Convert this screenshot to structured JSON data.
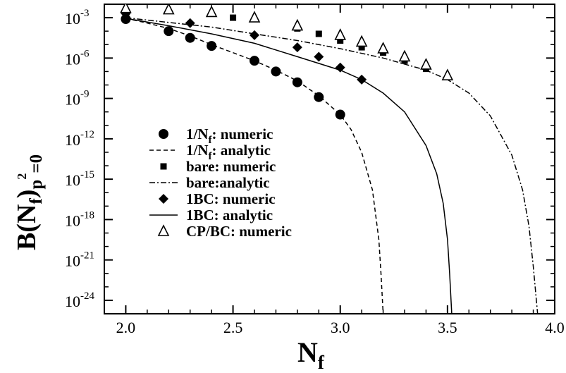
{
  "chart_data": {
    "type": "scatter",
    "xlabel": "N",
    "xlabel_sub": "f",
    "ylabel_parts": [
      "B(N",
      "f",
      ")",
      "p",
      "2",
      "=0"
    ],
    "xlim": [
      1.9,
      4.0
    ],
    "ylim_log10": [
      -25,
      -2
    ],
    "y_scale": "log",
    "xticks": [
      2.0,
      2.5,
      3.0,
      3.5,
      4.0
    ],
    "xtick_labels": [
      "2.0",
      "2.5",
      "3.0",
      "3.5",
      "4.0"
    ],
    "yticks_exp": [
      -3,
      -6,
      -9,
      -12,
      -15,
      -18,
      -21,
      -24
    ],
    "ytick_labels": [
      "10",
      "10",
      "10",
      "10",
      "10",
      "10",
      "10",
      "10"
    ],
    "ytick_exponents": [
      "-3",
      "-6",
      "-9",
      "-12",
      "-15",
      "-18",
      "-21",
      "-24"
    ],
    "legend_placement": "center-left",
    "series": [
      {
        "name": "1/N",
        "name_sub": "f",
        "name_suffix": ": numeric",
        "kind": "points",
        "marker": "circle",
        "points": [
          [
            2.0,
            -3.1
          ],
          [
            2.2,
            -4.0
          ],
          [
            2.3,
            -4.5
          ],
          [
            2.4,
            -5.1
          ],
          [
            2.6,
            -6.2
          ],
          [
            2.7,
            -7.0
          ],
          [
            2.8,
            -7.8
          ],
          [
            2.9,
            -8.9
          ],
          [
            3.0,
            -10.2
          ]
        ]
      },
      {
        "name": "1/N",
        "name_sub": "f",
        "name_suffix": ": analytic",
        "kind": "line",
        "dash": "dashed",
        "points": [
          [
            2.0,
            -3.05
          ],
          [
            2.1,
            -3.4
          ],
          [
            2.2,
            -3.8
          ],
          [
            2.3,
            -4.35
          ],
          [
            2.4,
            -5.0
          ],
          [
            2.5,
            -5.6
          ],
          [
            2.6,
            -6.2
          ],
          [
            2.7,
            -6.9
          ],
          [
            2.8,
            -7.7
          ],
          [
            2.9,
            -8.8
          ],
          [
            3.0,
            -10.2
          ],
          [
            3.05,
            -11.3
          ],
          [
            3.1,
            -13.0
          ],
          [
            3.15,
            -15.8
          ],
          [
            3.18,
            -19.5
          ],
          [
            3.19,
            -22.0
          ],
          [
            3.2,
            -25.0
          ]
        ]
      },
      {
        "name": "bare: numeric",
        "kind": "points",
        "marker": "square",
        "points": [
          [
            2.0,
            -2.6
          ],
          [
            2.5,
            -3.0
          ],
          [
            2.8,
            -3.8
          ],
          [
            2.9,
            -4.2
          ],
          [
            3.0,
            -4.7
          ],
          [
            3.1,
            -5.2
          ],
          [
            3.2,
            -5.6
          ],
          [
            3.3,
            -6.2
          ],
          [
            3.4,
            -6.8
          ]
        ]
      },
      {
        "name": "bare:analytic",
        "kind": "line",
        "dash": "dashdot",
        "points": [
          [
            2.0,
            -3.0
          ],
          [
            2.2,
            -3.35
          ],
          [
            2.4,
            -3.7
          ],
          [
            2.6,
            -4.2
          ],
          [
            2.8,
            -4.7
          ],
          [
            3.0,
            -5.3
          ],
          [
            3.2,
            -6.0
          ],
          [
            3.4,
            -6.9
          ],
          [
            3.5,
            -7.6
          ],
          [
            3.6,
            -8.6
          ],
          [
            3.7,
            -10.3
          ],
          [
            3.8,
            -13.2
          ],
          [
            3.85,
            -15.8
          ],
          [
            3.88,
            -18.5
          ],
          [
            3.9,
            -21.5
          ],
          [
            3.92,
            -25.0
          ]
        ]
      },
      {
        "name": "1BC: numeric",
        "kind": "points",
        "marker": "diamond",
        "points": [
          [
            2.0,
            -2.7
          ],
          [
            2.3,
            -3.4
          ],
          [
            2.6,
            -4.3
          ],
          [
            2.8,
            -5.2
          ],
          [
            2.9,
            -5.9
          ],
          [
            3.0,
            -6.7
          ],
          [
            3.1,
            -7.6
          ]
        ]
      },
      {
        "name": "1BC: analytic",
        "kind": "line",
        "dash": "solid",
        "points": [
          [
            2.0,
            -3.05
          ],
          [
            2.2,
            -3.6
          ],
          [
            2.4,
            -4.2
          ],
          [
            2.6,
            -4.9
          ],
          [
            2.8,
            -5.9
          ],
          [
            3.0,
            -6.9
          ],
          [
            3.1,
            -7.6
          ],
          [
            3.2,
            -8.6
          ],
          [
            3.3,
            -10.0
          ],
          [
            3.4,
            -12.5
          ],
          [
            3.45,
            -14.6
          ],
          [
            3.48,
            -16.8
          ],
          [
            3.5,
            -19.5
          ],
          [
            3.51,
            -22.0
          ],
          [
            3.52,
            -25.0
          ]
        ]
      },
      {
        "name": "CP/BC: numeric",
        "kind": "points",
        "marker": "triangle",
        "points": [
          [
            2.0,
            -2.3
          ],
          [
            2.2,
            -2.4
          ],
          [
            2.4,
            -2.6
          ],
          [
            2.6,
            -3.0
          ],
          [
            2.8,
            -3.6
          ],
          [
            3.0,
            -4.3
          ],
          [
            3.1,
            -4.8
          ],
          [
            3.2,
            -5.3
          ],
          [
            3.3,
            -5.9
          ],
          [
            3.4,
            -6.5
          ],
          [
            3.5,
            -7.3
          ]
        ]
      }
    ]
  }
}
